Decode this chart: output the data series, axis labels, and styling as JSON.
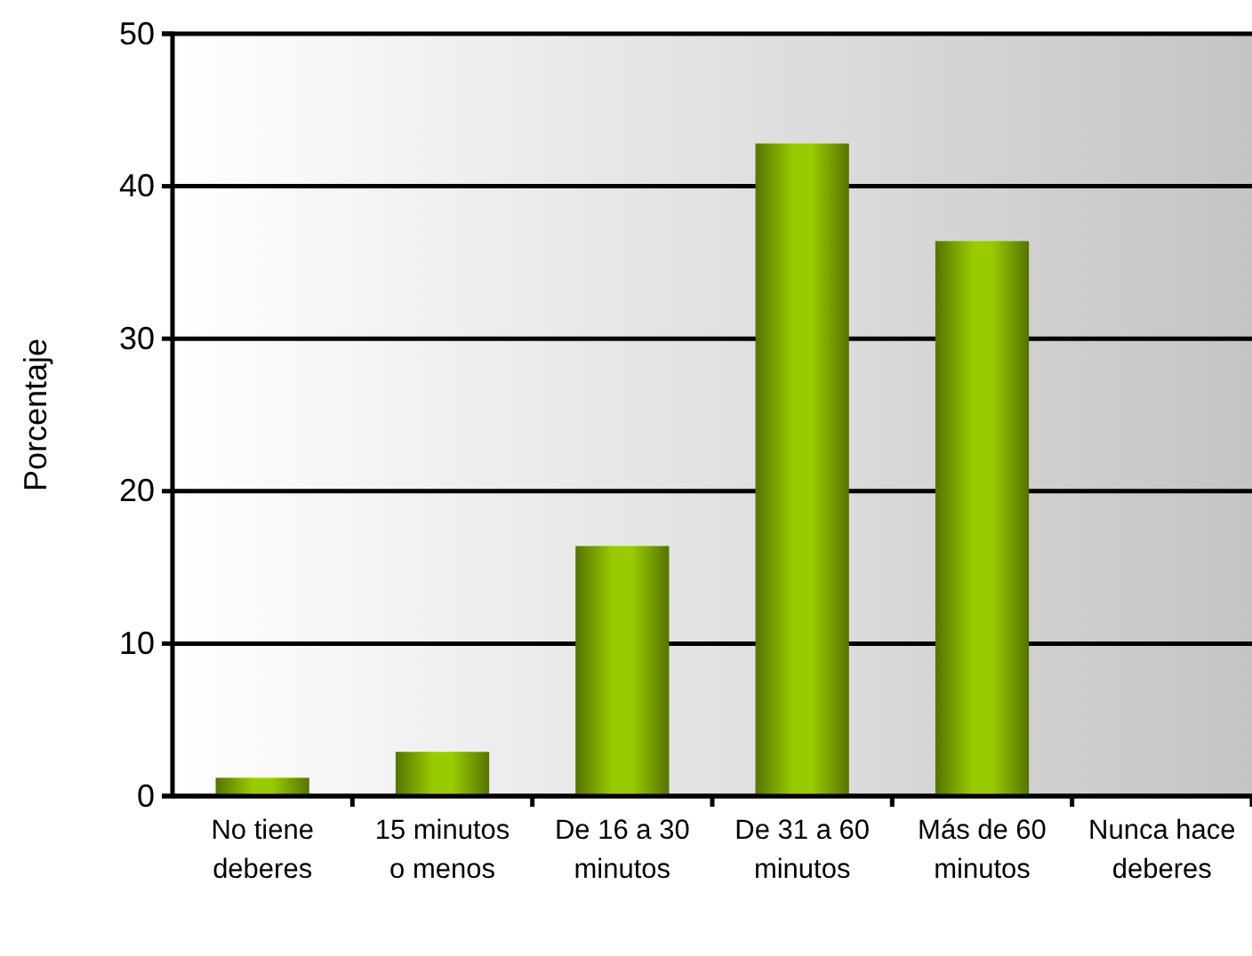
{
  "chart_data": {
    "type": "bar",
    "ylabel": "Porcentaje",
    "categories": [
      "No tiene deberes",
      "15 minutos o menos",
      "De 16 a 30 minutos",
      "De 31 a 60 minutos",
      "Más de 60 minutos",
      "Nunca hace deberes"
    ],
    "values": [
      1.2,
      2.9,
      16.4,
      42.8,
      36.4,
      0
    ],
    "color": "#99cc00",
    "ylim": [
      0,
      50
    ],
    "yticks": [
      0,
      10,
      20,
      30,
      40,
      50
    ],
    "grid": "y"
  }
}
